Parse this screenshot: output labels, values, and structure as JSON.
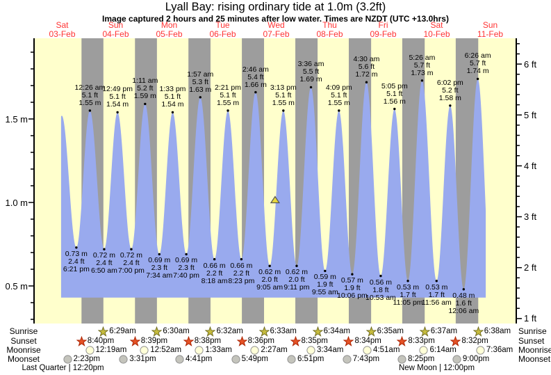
{
  "title": "Lyall Bay: rising  ordinary tide at 1.0m (3.2ft)",
  "subtitle": "Image captured 2 hours and 25 minutes after low water. Times are NZDT (UTC +13.0hrs)",
  "days": [
    {
      "name": "Sat",
      "date": "03-Feb"
    },
    {
      "name": "Sun",
      "date": "04-Feb"
    },
    {
      "name": "Mon",
      "date": "05-Feb"
    },
    {
      "name": "Tue",
      "date": "06-Feb"
    },
    {
      "name": "Wed",
      "date": "07-Feb"
    },
    {
      "name": "Thu",
      "date": "08-Feb"
    },
    {
      "name": "Fri",
      "date": "09-Feb"
    },
    {
      "name": "Sat",
      "date": "10-Feb"
    },
    {
      "name": "Sun",
      "date": "11-Feb"
    }
  ],
  "colors": {
    "plot_bg": "#ffffcc",
    "night_band": "#9d9d9d",
    "tide_fill": "#99aaee",
    "day_label": "#ff3333",
    "axis": "#000000",
    "sunrise_star_fill": "#c6bc3e",
    "sunrise_star_stroke": "#6e6a1e",
    "sunset_star_fill": "#e55226",
    "sunset_star_stroke": "#aa2200",
    "moonrise_fill": "#ffffd8",
    "moonrise_stroke": "#909090",
    "moonset_fill": "#c4c4bc",
    "moonset_stroke": "#909090",
    "marker_fill": "#e8d83a",
    "marker_stroke": "#555555"
  },
  "chart_data": {
    "type": "area",
    "title": "Lyall Bay tide height, 03-Feb to 11-Feb",
    "y_axis_left": {
      "unit": "m",
      "tick_values": [
        0.5,
        1.0,
        1.5
      ],
      "tick_labels": [
        "0.5 m",
        "1.0 m",
        "1.5 m"
      ],
      "minor_step": 0.1
    },
    "y_axis_right": {
      "unit": "ft",
      "tick_values": [
        1,
        2,
        3,
        4,
        5,
        6
      ],
      "tick_labels": [
        "1 ft",
        "2 ft",
        "3 ft",
        "4 ft",
        "5 ft",
        "6 ft"
      ],
      "minor_step": 0.2
    },
    "high_tides": [
      {
        "day": 1,
        "time": "12:26 am",
        "ft": "5.1 ft",
        "m": "1.55 m"
      },
      {
        "day": 1,
        "time": "12:49 pm",
        "ft": "5.1 ft",
        "m": "1.54 m"
      },
      {
        "day": 2,
        "time": "1:11 am",
        "ft": "5.2 ft",
        "m": "1.59 m"
      },
      {
        "day": 2,
        "time": "1:33 pm",
        "ft": "5.1 ft",
        "m": "1.54 m"
      },
      {
        "day": 3,
        "time": "1:57 am",
        "ft": "5.3 ft",
        "m": "1.63 m"
      },
      {
        "day": 3,
        "time": "2:21 pm",
        "ft": "5.1 ft",
        "m": "1.55 m"
      },
      {
        "day": 4,
        "time": "2:46 am",
        "ft": "5.4 ft",
        "m": "1.66 m"
      },
      {
        "day": 4,
        "time": "3:13 pm",
        "ft": "5.1 ft",
        "m": "1.55 m"
      },
      {
        "day": 5,
        "time": "3:36 am",
        "ft": "5.5 ft",
        "m": "1.69 m"
      },
      {
        "day": 5,
        "time": "4:09 pm",
        "ft": "5.1 ft",
        "m": "1.55 m"
      },
      {
        "day": 6,
        "time": "4:30 am",
        "ft": "5.6 ft",
        "m": "1.72 m"
      },
      {
        "day": 6,
        "time": "5:05 pm",
        "ft": "5.1 ft",
        "m": "1.56 m"
      },
      {
        "day": 7,
        "time": "5:26 am",
        "ft": "5.7 ft",
        "m": "1.73 m"
      },
      {
        "day": 7,
        "time": "6:02 pm",
        "ft": "5.2 ft",
        "m": "1.58 m"
      },
      {
        "day": 8,
        "time": "6:26 am",
        "ft": "5.7 ft",
        "m": "1.74 m"
      }
    ],
    "low_tides": [
      {
        "day": 0,
        "m": "0.73 m",
        "ft": "2.4 ft",
        "time": "6:21 pm"
      },
      {
        "day": 1,
        "m": "0.72 m",
        "ft": "2.4 ft",
        "time": "6:50 am"
      },
      {
        "day": 1,
        "m": "0.72 m",
        "ft": "2.4 ft",
        "time": "7:00 pm"
      },
      {
        "day": 2,
        "m": "0.69 m",
        "ft": "2.3 ft",
        "time": "7:34 am"
      },
      {
        "day": 2,
        "m": "0.69 m",
        "ft": "2.3 ft",
        "time": "7:40 pm"
      },
      {
        "day": 3,
        "m": "0.66 m",
        "ft": "2.2 ft",
        "time": "8:18 am"
      },
      {
        "day": 3,
        "m": "0.66 m",
        "ft": "2.2 ft",
        "time": "8:23 pm"
      },
      {
        "day": 4,
        "m": "0.62 m",
        "ft": "2.0 ft",
        "time": "9:05 am"
      },
      {
        "day": 4,
        "m": "0.62 m",
        "ft": "2.0 ft",
        "time": "9:11 pm"
      },
      {
        "day": 5,
        "m": "0.59 m",
        "ft": "1.9 ft",
        "time": "9:55 am"
      },
      {
        "day": 5,
        "m": "0.57 m",
        "ft": "1.9 ft",
        "time": "10:06 pm"
      },
      {
        "day": 6,
        "m": "0.56 m",
        "ft": "1.8 ft",
        "time": "10:53 am"
      },
      {
        "day": 6,
        "m": "0.53 m",
        "ft": "1.7 ft",
        "time": "11:05 pm"
      },
      {
        "day": 7,
        "m": "0.53 m",
        "ft": "1.7 ft",
        "time": "11:56 am"
      },
      {
        "day": 8,
        "m": "0.48 m",
        "ft": "1.6 ft",
        "time": "12:06 am"
      }
    ],
    "curve": {
      "start": {
        "day": 0,
        "hour": 11.5
      },
      "end": {
        "day": 8,
        "hour": 10.0
      },
      "pad_extremes": [
        {
          "day": 0,
          "hour": 5.5,
          "value_m": 0.7
        },
        {
          "day": 0,
          "hour": 11.83,
          "value_m": 1.52
        },
        {
          "day": 8,
          "hour": 12.67,
          "value_m": 0.45
        }
      ],
      "baseline_m": 0.43
    },
    "current_marker": {
      "day": 4,
      "hour": 11.5,
      "value_m": 1.0,
      "shape": "triangle-up"
    }
  },
  "almanac": {
    "row_labels": [
      "Sunrise",
      "Sunset",
      "Moonrise",
      "Moonset"
    ],
    "sunrise": {
      "events": [
        {
          "day": 1,
          "time": "6:29am"
        },
        {
          "day": 2,
          "time": "6:30am"
        },
        {
          "day": 3,
          "time": "6:32am"
        },
        {
          "day": 4,
          "time": "6:33am"
        },
        {
          "day": 5,
          "time": "6:34am"
        },
        {
          "day": 6,
          "time": "6:35am"
        },
        {
          "day": 7,
          "time": "6:37am"
        },
        {
          "day": 8,
          "time": "6:38am"
        }
      ]
    },
    "sunset": {
      "events": [
        {
          "day": 0,
          "time": "8:40pm"
        },
        {
          "day": 1,
          "time": "8:39pm"
        },
        {
          "day": 2,
          "time": "8:38pm"
        },
        {
          "day": 3,
          "time": "8:36pm"
        },
        {
          "day": 4,
          "time": "8:35pm"
        },
        {
          "day": 5,
          "time": "8:34pm"
        },
        {
          "day": 6,
          "time": "8:33pm"
        },
        {
          "day": 7,
          "time": "8:32pm"
        }
      ]
    },
    "moonrise": {
      "events": [
        {
          "day": 1,
          "time": "12:19am"
        },
        {
          "day": 2,
          "time": "12:52am"
        },
        {
          "day": 3,
          "time": "1:33am"
        },
        {
          "day": 4,
          "time": "2:27am"
        },
        {
          "day": 5,
          "time": "3:34am"
        },
        {
          "day": 6,
          "time": "4:51am"
        },
        {
          "day": 7,
          "time": "6:14am"
        },
        {
          "day": 8,
          "time": "7:36am"
        }
      ]
    },
    "moonset": {
      "events": [
        {
          "day": 0,
          "time": "2:23pm"
        },
        {
          "day": 1,
          "time": "3:31pm"
        },
        {
          "day": 2,
          "time": "4:41pm"
        },
        {
          "day": 3,
          "time": "5:49pm"
        },
        {
          "day": 4,
          "time": "6:51pm"
        },
        {
          "day": 5,
          "time": "7:43pm"
        },
        {
          "day": 6,
          "time": "8:25pm"
        },
        {
          "day": 7,
          "time": "9:00pm"
        }
      ]
    },
    "phases": [
      {
        "label": "Last Quarter | 12:20pm",
        "day": 0,
        "hour": 12.33
      },
      {
        "label": "New Moon | 12:00pm",
        "day": 7,
        "hour": 12.0
      }
    ]
  }
}
